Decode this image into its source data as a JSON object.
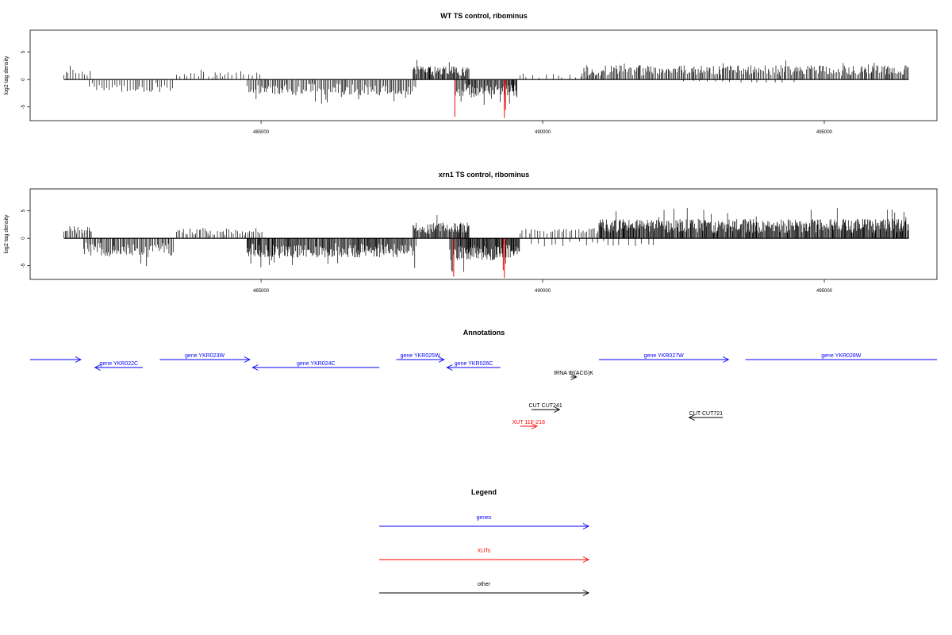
{
  "colors": {
    "gene": "#0000ff",
    "xut": "#ff0000",
    "other": "#000000",
    "signal": "#000000",
    "highlight": "#ff0000"
  },
  "chart_data": [
    {
      "type": "bar",
      "title": "WT TS control, ribominus",
      "ylabel": "log2 tag density",
      "xlim": [
        480900,
        497000
      ],
      "ylim": [
        -7.5,
        9
      ],
      "yticks": [
        -5,
        0,
        5
      ],
      "xticks": [
        485000,
        490000,
        495000
      ],
      "ytick_labels": [
        "-5",
        "0",
        "5"
      ],
      "xtick_labels": [
        "485000",
        "490000",
        "495000"
      ],
      "baseline": {
        "x": [
          481500,
          496500
        ],
        "y": 0
      },
      "segments": [
        {
          "x": [
            481500,
            482000
          ],
          "sign": 1,
          "amp": 1.8,
          "density": 0.3
        },
        {
          "x": [
            481950,
            483450
          ],
          "sign": -1,
          "amp": 2.4,
          "density": 0.3
        },
        {
          "x": [
            483500,
            485050
          ],
          "sign": 1,
          "amp": 1.5,
          "density": 0.18
        },
        {
          "x": [
            484750,
            487750
          ],
          "sign": -1,
          "amp": 2.8,
          "density": 0.5
        },
        {
          "x": [
            487700,
            488700
          ],
          "sign": 1,
          "amp": 2.5,
          "density": 0.8
        },
        {
          "x": [
            488450,
            489550
          ],
          "sign": -1,
          "amp": 3.0,
          "density": 0.8
        },
        {
          "x": [
            489600,
            490800
          ],
          "sign": 1,
          "amp": 1.2,
          "density": 0.12
        },
        {
          "x": [
            490700,
            496500
          ],
          "sign": 1,
          "amp": 2.6,
          "density": 0.55
        },
        {
          "x": [
            492500,
            494500
          ],
          "sign": -1,
          "amp": 0.6,
          "density": 0.08
        }
      ],
      "highlights": [
        {
          "x": 488440,
          "y": -6.8
        },
        {
          "x": 489320,
          "y": -7.0
        },
        {
          "x": 489340,
          "y": -5.5
        }
      ]
    },
    {
      "type": "bar",
      "title": "xrn1 TS control, ribominus",
      "ylabel": "log2 tag density",
      "xlim": [
        480900,
        497000
      ],
      "ylim": [
        -7.5,
        9
      ],
      "yticks": [
        -5,
        0,
        5
      ],
      "xticks": [
        485000,
        490000,
        495000
      ],
      "ytick_labels": [
        "-5",
        "0",
        "5"
      ],
      "xtick_labels": [
        "485000",
        "490000",
        "495000"
      ],
      "baseline": {
        "x": [
          481500,
          496500
        ],
        "y": 0
      },
      "segments": [
        {
          "x": [
            481500,
            482000
          ],
          "sign": 1,
          "amp": 2.2,
          "density": 0.5
        },
        {
          "x": [
            481850,
            483450
          ],
          "sign": -1,
          "amp": 3.2,
          "density": 0.6
        },
        {
          "x": [
            483500,
            485050
          ],
          "sign": 1,
          "amp": 2.0,
          "density": 0.35
        },
        {
          "x": [
            484750,
            487750
          ],
          "sign": -1,
          "amp": 3.5,
          "density": 0.8
        },
        {
          "x": [
            487700,
            488700
          ],
          "sign": 1,
          "amp": 2.9,
          "density": 0.9
        },
        {
          "x": [
            488350,
            489600
          ],
          "sign": -1,
          "amp": 4.0,
          "density": 1.0
        },
        {
          "x": [
            489600,
            491000
          ],
          "sign": 1,
          "amp": 1.8,
          "density": 0.25
        },
        {
          "x": [
            491000,
            496500
          ],
          "sign": 1,
          "amp": 3.5,
          "density": 0.95
        },
        {
          "x": [
            489800,
            492000
          ],
          "sign": -1,
          "amp": 1.5,
          "density": 0.1
        }
      ],
      "highlights": [
        {
          "x": 488420,
          "y": -7.0
        },
        {
          "x": 489320,
          "y": -7.2
        },
        {
          "x": 489300,
          "y": -5.8
        }
      ]
    }
  ],
  "annotations": {
    "title": "Annotations",
    "xlim": [
      480900,
      497000
    ],
    "features": [
      {
        "label": "",
        "kind": "gene",
        "strand": "+",
        "start": 480900,
        "end": 481800,
        "row": 0
      },
      {
        "label": "gene YKR022C",
        "kind": "gene",
        "strand": "-",
        "start": 482050,
        "end": 482900,
        "row": 1
      },
      {
        "label": "gene YKR023W",
        "kind": "gene",
        "strand": "+",
        "start": 483200,
        "end": 484800,
        "row": 0
      },
      {
        "label": "gene YKR024C",
        "kind": "gene",
        "strand": "-",
        "start": 484850,
        "end": 487100,
        "row": 1
      },
      {
        "label": "gene YKR025W",
        "kind": "gene",
        "strand": "+",
        "start": 487400,
        "end": 488250,
        "row": 0
      },
      {
        "label": "gene YKR026C",
        "kind": "gene",
        "strand": "-",
        "start": 488300,
        "end": 489250,
        "row": 1
      },
      {
        "label": "tRNA tR(ACG)K",
        "kind": "other",
        "strand": "+",
        "start": 490500,
        "end": 490600,
        "row": 2
      },
      {
        "label": "gene YKR027W",
        "kind": "gene",
        "strand": "+",
        "start": 491000,
        "end": 493300,
        "row": 0
      },
      {
        "label": "gene YKR028W",
        "kind": "gene",
        "strand": "+",
        "start": 493600,
        "end": 497000,
        "row": 0
      },
      {
        "label": "CUT CUT241",
        "kind": "other",
        "strand": "+",
        "start": 489800,
        "end": 490300,
        "row": 3
      },
      {
        "label": "XUT 11F-216",
        "kind": "xut",
        "strand": "+",
        "start": 489600,
        "end": 489900,
        "row": 4
      },
      {
        "label": "CUT CUT721",
        "kind": "other",
        "strand": "-",
        "start": 492600,
        "end": 493200,
        "row": 3.5
      }
    ]
  },
  "legend": {
    "title": "Legend",
    "items": [
      {
        "label": "genes",
        "kind": "gene"
      },
      {
        "label": "XUTs",
        "kind": "xut"
      },
      {
        "label": "other",
        "kind": "other"
      }
    ]
  }
}
